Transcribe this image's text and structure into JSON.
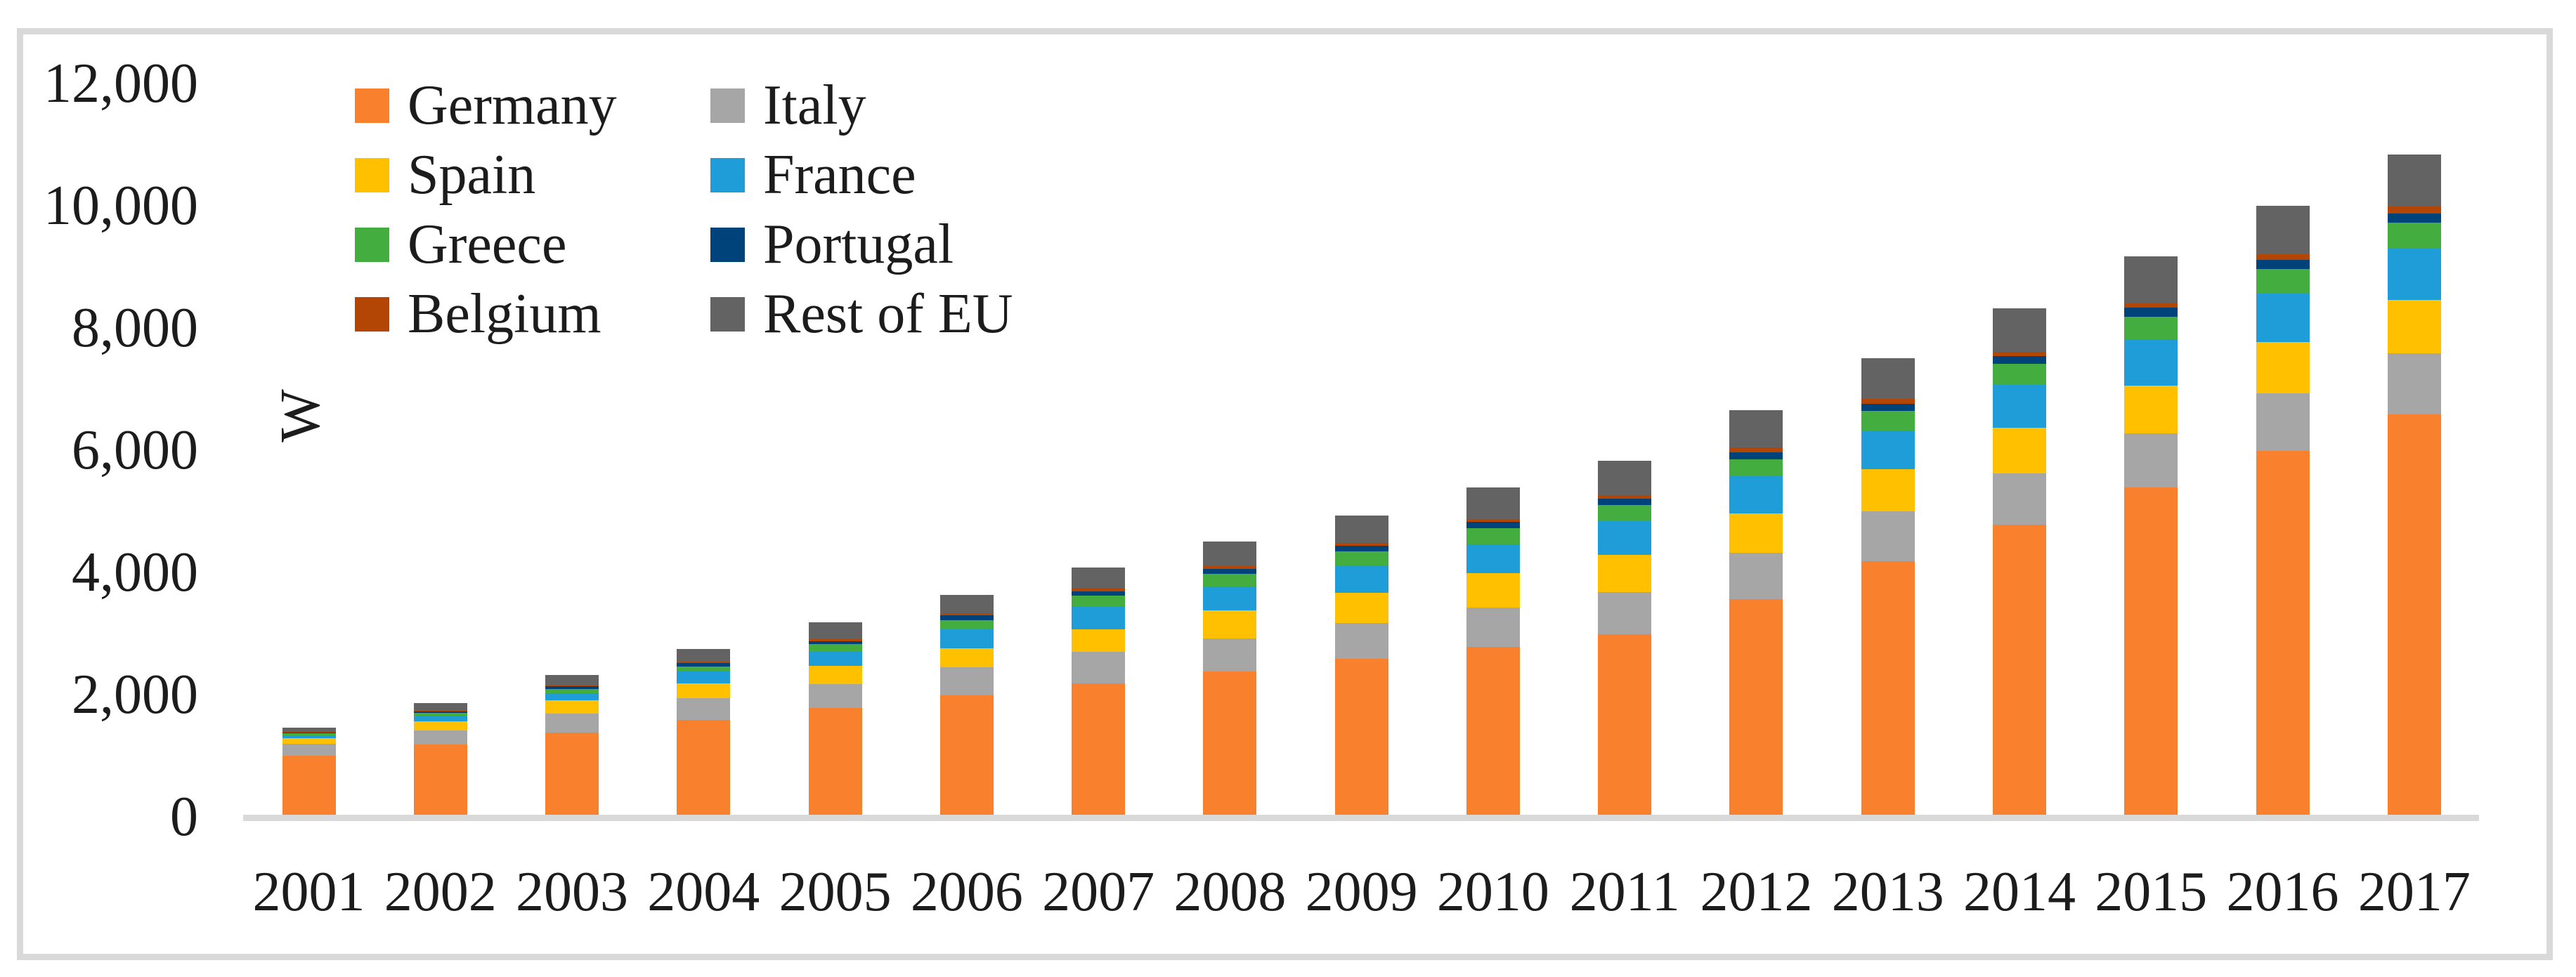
{
  "figure": {
    "background_color": "#FFFFFF",
    "frame_color": "#D9D9D9",
    "axis_line_color": "#D9D9D9",
    "text_color": "#1C1C1C"
  },
  "chart_data": {
    "type": "bar",
    "stacked": true,
    "title": "",
    "xlabel": "",
    "ylabel": "W",
    "ylim": [
      0,
      12000
    ],
    "grid": false,
    "legend_position": "top-left-two-columns",
    "y_ticks": [
      {
        "value": 0,
        "label": "0"
      },
      {
        "value": 2000,
        "label": "2,000"
      },
      {
        "value": 4000,
        "label": "4,000"
      },
      {
        "value": 6000,
        "label": "6,000"
      },
      {
        "value": 8000,
        "label": "8,000"
      },
      {
        "value": 10000,
        "label": "10,000"
      },
      {
        "value": 12000,
        "label": "12,000"
      }
    ],
    "categories": [
      "2001",
      "2002",
      "2003",
      "2004",
      "2005",
      "2006",
      "2007",
      "2008",
      "2009",
      "2010",
      "2011",
      "2012",
      "2013",
      "2014",
      "2015",
      "2016",
      "2017"
    ],
    "series": [
      {
        "name": "Germany",
        "color": "#F9802C",
        "values": [
          970,
          1150,
          1350,
          1550,
          1750,
          1950,
          2150,
          2350,
          2550,
          2750,
          2950,
          3530,
          4150,
          4750,
          5360,
          5950,
          6550
        ]
      },
      {
        "name": "Italy",
        "color": "#A6A6A6",
        "values": [
          190,
          230,
          300,
          355,
          385,
          460,
          515,
          540,
          590,
          645,
          690,
          755,
          810,
          840,
          885,
          950,
          1000
        ]
      },
      {
        "name": "Spain",
        "color": "#FFC000",
        "values": [
          90,
          145,
          220,
          240,
          300,
          310,
          375,
          455,
          495,
          555,
          610,
          650,
          690,
          740,
          775,
          835,
          870
        ]
      },
      {
        "name": "France",
        "color": "#1E9DD8",
        "values": [
          55,
          100,
          115,
          195,
          240,
          310,
          365,
          395,
          445,
          480,
          550,
          605,
          640,
          705,
          765,
          790,
          850
        ]
      },
      {
        "name": "Greece",
        "color": "#44AD3F",
        "values": [
          25,
          45,
          70,
          90,
          115,
          160,
          180,
          200,
          235,
          255,
          265,
          280,
          315,
          345,
          365,
          405,
          420
        ]
      },
      {
        "name": "Portugal",
        "color": "#00427A",
        "values": [
          15,
          20,
          45,
          50,
          55,
          75,
          75,
          85,
          85,
          110,
          110,
          115,
          125,
          125,
          145,
          155,
          155
        ]
      },
      {
        "name": "Belgium",
        "color": "#B34605",
        "values": [
          10,
          15,
          20,
          25,
          30,
          35,
          40,
          45,
          45,
          50,
          60,
          75,
          75,
          75,
          75,
          90,
          105
        ]
      },
      {
        "name": "Rest of EU",
        "color": "#636363",
        "values": [
          75,
          125,
          165,
          210,
          275,
          300,
          350,
          400,
          450,
          510,
          555,
          610,
          670,
          710,
          770,
          795,
          855
        ]
      }
    ],
    "totals": [
      1430,
      1830,
      2285,
      2715,
      3150,
      3600,
      4050,
      4470,
      4895,
      5355,
      5790,
      6620,
      7475,
      8290,
      9140,
      9970,
      10805
    ]
  }
}
